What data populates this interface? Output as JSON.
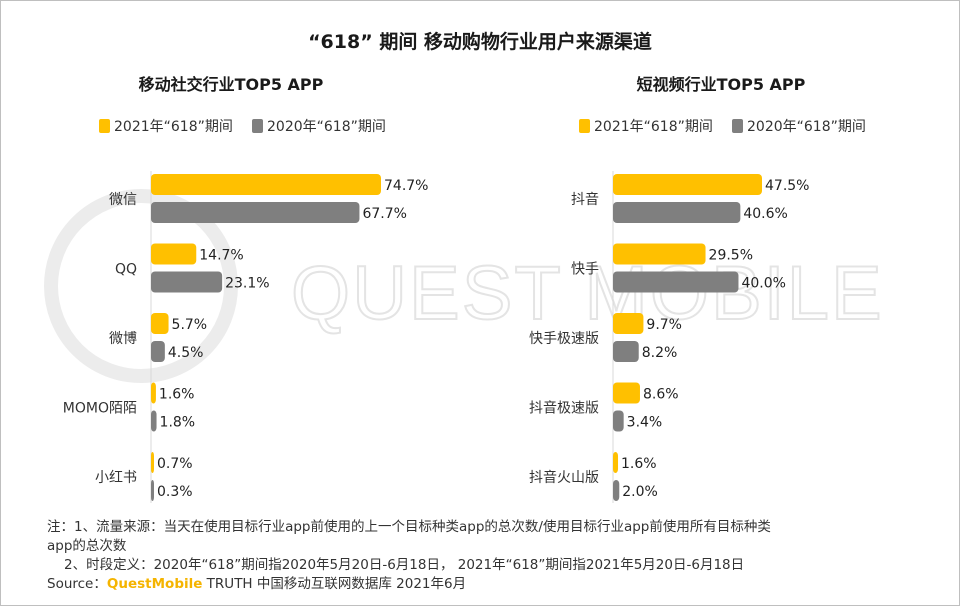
{
  "title": "“618” 期间 移动购物行业用户来源渠道",
  "watermark": "QUEST MOBILE",
  "colors": {
    "y2021": "#ffc000",
    "y2020": "#7f7f7f"
  },
  "notes": {
    "line1a": "注：1、流量来源：当天在使用目标行业app前使用的上一个目标种类app的总次数/使用目标行业app前使用所有目标种类",
    "line1b": "app的总次数",
    "line2": "2、时段定义：2020年“618”期间指2020年5月20日-6月18日， 2021年“618”期间指2021年5月20日-6月18日",
    "source_prefix": "Source：",
    "source_brand": "QuestMobile",
    "source_suffix": " TRUTH 中国移动互联网数据库 2021年6月"
  },
  "chart_data": [
    {
      "type": "bar",
      "orientation": "horizontal",
      "title": "移动社交行业TOP5 APP",
      "legend_position": "top",
      "categories": [
        "微信",
        "QQ",
        "微博",
        "MOMO陌陌",
        "小红书"
      ],
      "series": [
        {
          "name": "2021年“618”期间",
          "values": [
            74.7,
            14.7,
            5.7,
            1.6,
            0.7
          ]
        },
        {
          "name": "2020年“618”期间",
          "values": [
            67.7,
            23.1,
            4.5,
            1.8,
            0.3
          ]
        }
      ],
      "value_format": "percent_1dp",
      "xlim": [
        0,
        85
      ]
    },
    {
      "type": "bar",
      "orientation": "horizontal",
      "title": "短视频行业TOP5 APP",
      "legend_position": "top",
      "categories": [
        "抖音",
        "快手",
        "快手极速版",
        "抖音极速版",
        "抖音火山版"
      ],
      "series": [
        {
          "name": "2021年“618”期间",
          "values": [
            47.5,
            29.5,
            9.7,
            8.6,
            1.6
          ]
        },
        {
          "name": "2020年“618”期间",
          "values": [
            40.6,
            40.0,
            8.2,
            3.4,
            2.0
          ]
        }
      ],
      "value_format": "percent_1dp",
      "xlim": [
        0,
        54
      ]
    }
  ]
}
